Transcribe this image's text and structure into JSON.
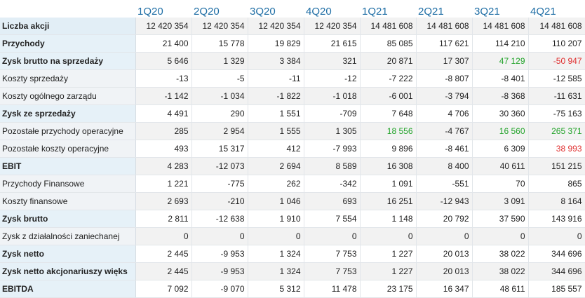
{
  "quarters": [
    "1Q20",
    "2Q20",
    "3Q20",
    "4Q20",
    "1Q21",
    "2Q21",
    "3Q21",
    "4Q21"
  ],
  "rows": [
    {
      "label": "Liczba akcji",
      "bold": true,
      "values": [
        "12 420 354",
        "12 420 354",
        "12 420 354",
        "12 420 354",
        "14 481 608",
        "14 481 608",
        "14 481 608",
        "14 481 608"
      ],
      "colors": [
        null,
        null,
        null,
        null,
        null,
        null,
        null,
        null
      ]
    },
    {
      "label": "Przychody",
      "bold": true,
      "values": [
        "21 400",
        "15 778",
        "19 829",
        "21 615",
        "85 085",
        "117 621",
        "114 210",
        "110 207"
      ],
      "colors": [
        null,
        null,
        null,
        null,
        null,
        null,
        null,
        null
      ]
    },
    {
      "label": "Zysk brutto na sprzedaży",
      "bold": true,
      "values": [
        "5 646",
        "1 329",
        "3 384",
        "321",
        "20 871",
        "17 307",
        "47 129",
        "-50 947"
      ],
      "colors": [
        null,
        null,
        null,
        null,
        null,
        null,
        "pos",
        "neg"
      ]
    },
    {
      "label": "Koszty sprzedaży",
      "bold": false,
      "values": [
        "-13",
        "-5",
        "-11",
        "-12",
        "-7 222",
        "-8 807",
        "-8 401",
        "-12 585"
      ],
      "colors": [
        null,
        null,
        null,
        null,
        null,
        null,
        null,
        null
      ]
    },
    {
      "label": "Koszty ogólnego zarządu",
      "bold": false,
      "values": [
        "-1 142",
        "-1 034",
        "-1 822",
        "-1 018",
        "-6 001",
        "-3 794",
        "-8 368",
        "-11 631"
      ],
      "colors": [
        null,
        null,
        null,
        null,
        null,
        null,
        null,
        null
      ]
    },
    {
      "label": "Zysk ze sprzedaży",
      "bold": true,
      "values": [
        "4 491",
        "290",
        "1 551",
        "-709",
        "7 648",
        "4 706",
        "30 360",
        "-75 163"
      ],
      "colors": [
        null,
        null,
        null,
        null,
        null,
        null,
        null,
        null
      ]
    },
    {
      "label": "Pozostałe przychody operacyjne",
      "bold": false,
      "values": [
        "285",
        "2 954",
        "1 555",
        "1 305",
        "18 556",
        "-4 767",
        "16 560",
        "265 371"
      ],
      "colors": [
        null,
        null,
        null,
        null,
        "pos",
        null,
        "pos",
        "pos"
      ]
    },
    {
      "label": "Pozostałe koszty operacyjne",
      "bold": false,
      "values": [
        "493",
        "15 317",
        "412",
        "-7 993",
        "9 896",
        "-8 461",
        "6 309",
        "38 993"
      ],
      "colors": [
        null,
        null,
        null,
        null,
        null,
        null,
        null,
        "neg"
      ]
    },
    {
      "label": "EBIT",
      "bold": true,
      "values": [
        "4 283",
        "-12 073",
        "2 694",
        "8 589",
        "16 308",
        "8 400",
        "40 611",
        "151 215"
      ],
      "colors": [
        null,
        null,
        null,
        null,
        null,
        null,
        null,
        null
      ]
    },
    {
      "label": "Przychody Finansowe",
      "bold": false,
      "values": [
        "1 221",
        "-775",
        "262",
        "-342",
        "1 091",
        "-551",
        "70",
        "865"
      ],
      "colors": [
        null,
        null,
        null,
        null,
        null,
        null,
        null,
        null
      ]
    },
    {
      "label": "Koszty finansowe",
      "bold": false,
      "values": [
        "2 693",
        "-210",
        "1 046",
        "693",
        "16 251",
        "-12 943",
        "3 091",
        "8 164"
      ],
      "colors": [
        null,
        null,
        null,
        null,
        null,
        null,
        null,
        null
      ]
    },
    {
      "label": "Zysk brutto",
      "bold": true,
      "values": [
        "2 811",
        "-12 638",
        "1 910",
        "7 554",
        "1 148",
        "20 792",
        "37 590",
        "143 916"
      ],
      "colors": [
        null,
        null,
        null,
        null,
        null,
        null,
        null,
        null
      ]
    },
    {
      "label": "Zysk z działalności zaniechanej",
      "bold": false,
      "values": [
        "0",
        "0",
        "0",
        "0",
        "0",
        "0",
        "0",
        "0"
      ],
      "colors": [
        null,
        null,
        null,
        null,
        null,
        null,
        null,
        null
      ]
    },
    {
      "label": "Zysk netto",
      "bold": true,
      "values": [
        "2 445",
        "-9 953",
        "1 324",
        "7 753",
        "1 227",
        "20 013",
        "38 022",
        "344 696"
      ],
      "colors": [
        null,
        null,
        null,
        null,
        null,
        null,
        null,
        null
      ]
    },
    {
      "label": "Zysk netto akcjonariuszy więks",
      "bold": true,
      "values": [
        "2 445",
        "-9 953",
        "1 324",
        "7 753",
        "1 227",
        "20 013",
        "38 022",
        "344 696"
      ],
      "colors": [
        null,
        null,
        null,
        null,
        null,
        null,
        null,
        null
      ]
    },
    {
      "label": "EBITDA",
      "bold": true,
      "values": [
        "7 092",
        "-9 070",
        "5 312",
        "11 478",
        "23 175",
        "16 347",
        "48 611",
        "185 557"
      ],
      "colors": [
        null,
        null,
        null,
        null,
        null,
        null,
        null,
        null
      ]
    }
  ]
}
